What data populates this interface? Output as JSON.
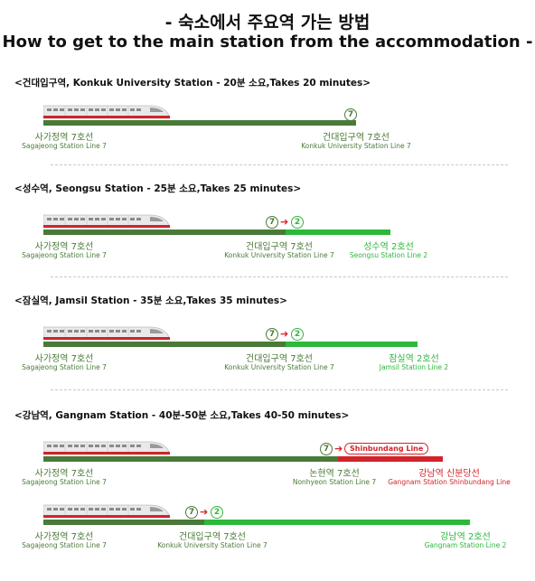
{
  "header": {
    "title_ko": "- 숙소에서 주요역 가는 방법",
    "title_en": "How to get to the main station from the accommodation -"
  },
  "line7_badge": "7",
  "line2_badge": "2",
  "colors": {
    "line7": "#4a7a38",
    "line2": "#2db83a",
    "shinbundang": "#d2232a"
  },
  "sections": {
    "konkuk": {
      "heading": "<건대입구역, Konkuk University Station - 20분 소요,Takes 20 minutes>",
      "from_ko": "사가정역 7호선",
      "from_en": "Sagajeong Station Line 7",
      "to_ko": "건대입구역 7호선",
      "to_en": "Konkuk University Station Line 7"
    },
    "seongsu": {
      "heading": "<성수역, Seongsu Station - 25분 소요,Takes 25 minutes>",
      "from_ko": "사가정역 7호선",
      "from_en": "Sagajeong Station Line 7",
      "mid_ko": "건대입구역 7호선",
      "mid_en": "Konkuk University Station Line 7",
      "to_ko": "성수역 2호선",
      "to_en": "Seongsu Station Line 2"
    },
    "jamsil": {
      "heading": "<잠실역, Jamsil Station - 35분 소요,Takes 35 minutes>",
      "from_ko": "사가정역 7호선",
      "from_en": "Sagajeong Station Line 7",
      "mid_ko": "건대입구역 7호선",
      "mid_en": "Konkuk University Station Line 7",
      "to_ko": "잠실역 2호선",
      "to_en": "Jamsil Station Line 2"
    },
    "gangnam": {
      "heading": "<강남역, Gangnam Station - 40분-50분 소요,Takes 40-50 minutes>",
      "route_a": {
        "from_ko": "사가정역 7호선",
        "from_en": "Sagajeong Station Line 7",
        "mid_ko": "논현역 7호선",
        "mid_en": "Nonhyeon Station Line 7",
        "pill": "Shinbundang Line",
        "to_ko": "강남역 신분당선",
        "to_en": "Gangnam Station Shinbundang Line"
      },
      "route_b": {
        "from_ko": "사가정역 7호선",
        "from_en": "Sagajeong Station Line 7",
        "mid_ko": "건대입구역 7호선",
        "mid_en": "Konkuk University Station Line 7",
        "to_ko": "강남역 2호선",
        "to_en": "Gangnam Station Line 2"
      }
    }
  }
}
